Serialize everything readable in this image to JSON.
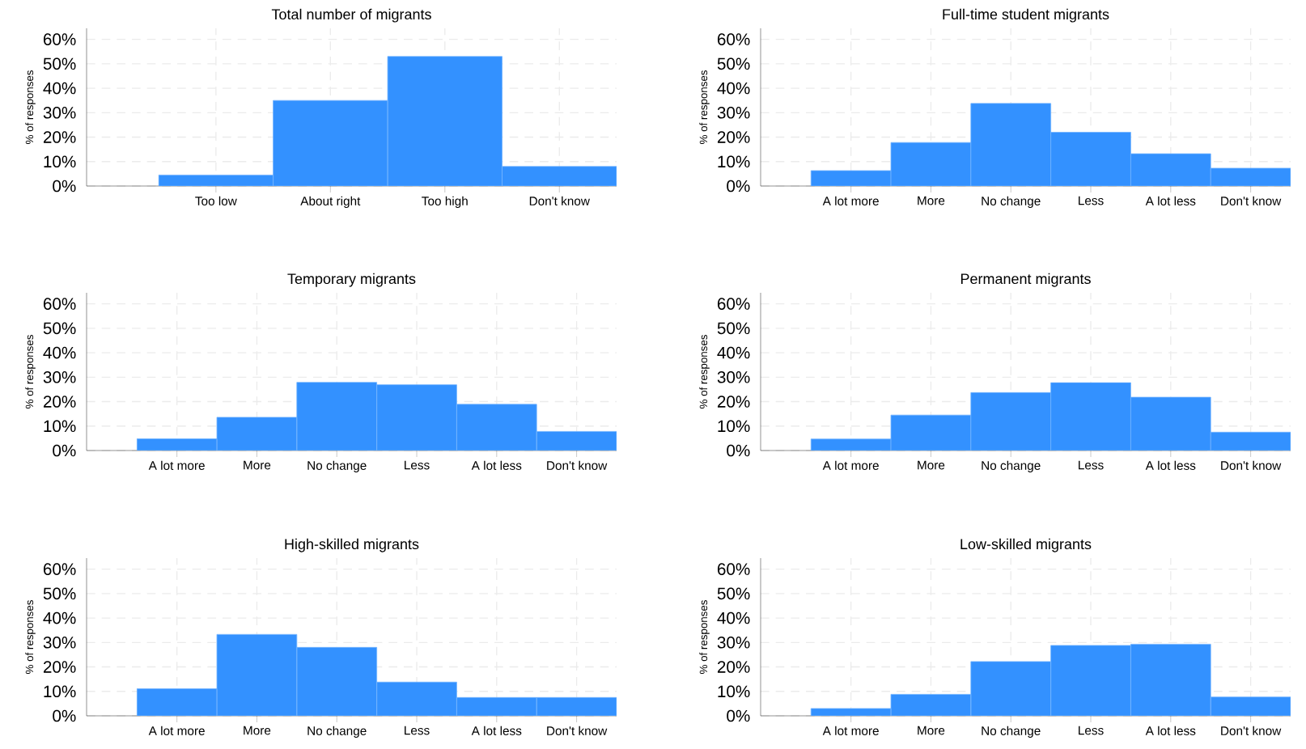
{
  "chart_data": [
    {
      "type": "bar",
      "title": "Total number of migrants",
      "ylabel": "% of responses",
      "categories": [
        "Too low",
        "About right",
        "Too high",
        "Don't know"
      ],
      "values": [
        4.5,
        35,
        53,
        8
      ],
      "color": "#3391ff",
      "ylim": [
        0,
        64.5
      ],
      "yticks": [
        {
          "value": 0,
          "label": "0%"
        },
        {
          "value": 10,
          "label": "10%"
        },
        {
          "value": 20,
          "label": "20%"
        },
        {
          "value": 30,
          "label": "30%"
        },
        {
          "value": 40,
          "label": "40%"
        },
        {
          "value": 50,
          "label": "50%"
        },
        {
          "value": 60,
          "label": "60%"
        }
      ],
      "grid": true
    },
    {
      "type": "bar",
      "title": "Full-time student migrants",
      "ylabel": "% of responses",
      "categories": [
        "A lot more",
        "More",
        "No change",
        "Less",
        "A lot less",
        "Don't know"
      ],
      "values": [
        6.3,
        17.8,
        33.8,
        22,
        13.2,
        7.3
      ],
      "color": "#3391ff",
      "ylim": [
        0,
        64.5
      ],
      "yticks": [
        {
          "value": 0,
          "label": "0%"
        },
        {
          "value": 10,
          "label": "10%"
        },
        {
          "value": 20,
          "label": "20%"
        },
        {
          "value": 30,
          "label": "30%"
        },
        {
          "value": 40,
          "label": "40%"
        },
        {
          "value": 50,
          "label": "50%"
        },
        {
          "value": 60,
          "label": "60%"
        }
      ],
      "grid": true
    },
    {
      "type": "bar",
      "title": "Temporary migrants",
      "ylabel": "% of responses",
      "categories": [
        "A lot more",
        "More",
        "No change",
        "Less",
        "A lot less",
        "Don't know"
      ],
      "values": [
        4.8,
        13.6,
        27.9,
        26.9,
        18.9,
        7.8
      ],
      "color": "#3391ff",
      "ylim": [
        0,
        64.5
      ],
      "yticks": [
        {
          "value": 0,
          "label": "0%"
        },
        {
          "value": 10,
          "label": "10%"
        },
        {
          "value": 20,
          "label": "20%"
        },
        {
          "value": 30,
          "label": "30%"
        },
        {
          "value": 40,
          "label": "40%"
        },
        {
          "value": 50,
          "label": "50%"
        },
        {
          "value": 60,
          "label": "60%"
        }
      ],
      "grid": true
    },
    {
      "type": "bar",
      "title": "Permanent migrants",
      "ylabel": "% of responses",
      "categories": [
        "A lot more",
        "More",
        "No change",
        "Less",
        "A lot less",
        "Don't know"
      ],
      "values": [
        4.7,
        14.5,
        23.7,
        27.8,
        21.8,
        7.5
      ],
      "color": "#3391ff",
      "ylim": [
        0,
        64.5
      ],
      "yticks": [
        {
          "value": 0,
          "label": "0%"
        },
        {
          "value": 10,
          "label": "10%"
        },
        {
          "value": 20,
          "label": "20%"
        },
        {
          "value": 30,
          "label": "30%"
        },
        {
          "value": 40,
          "label": "40%"
        },
        {
          "value": 50,
          "label": "50%"
        },
        {
          "value": 60,
          "label": "60%"
        }
      ],
      "grid": true
    },
    {
      "type": "bar",
      "title": "High-skilled migrants",
      "ylabel": "% of responses",
      "categories": [
        "A lot more",
        "More",
        "No change",
        "Less",
        "A lot less",
        "Don't know"
      ],
      "values": [
        11.1,
        33.3,
        28,
        13.8,
        7.5,
        7.5
      ],
      "color": "#3391ff",
      "ylim": [
        0,
        64.5
      ],
      "yticks": [
        {
          "value": 0,
          "label": "0%"
        },
        {
          "value": 10,
          "label": "10%"
        },
        {
          "value": 20,
          "label": "20%"
        },
        {
          "value": 30,
          "label": "30%"
        },
        {
          "value": 40,
          "label": "40%"
        },
        {
          "value": 50,
          "label": "50%"
        },
        {
          "value": 60,
          "label": "60%"
        }
      ],
      "grid": true
    },
    {
      "type": "bar",
      "title": "Low-skilled migrants",
      "ylabel": "% of responses",
      "categories": [
        "A lot more",
        "More",
        "No change",
        "Less",
        "A lot less",
        "Don't know"
      ],
      "values": [
        3,
        8.8,
        22.2,
        28.8,
        29.3,
        7.7
      ],
      "color": "#3391ff",
      "ylim": [
        0,
        64.5
      ],
      "yticks": [
        {
          "value": 0,
          "label": "0%"
        },
        {
          "value": 10,
          "label": "10%"
        },
        {
          "value": 20,
          "label": "20%"
        },
        {
          "value": 30,
          "label": "30%"
        },
        {
          "value": 40,
          "label": "40%"
        },
        {
          "value": 50,
          "label": "50%"
        },
        {
          "value": 60,
          "label": "60%"
        }
      ],
      "grid": true
    }
  ]
}
